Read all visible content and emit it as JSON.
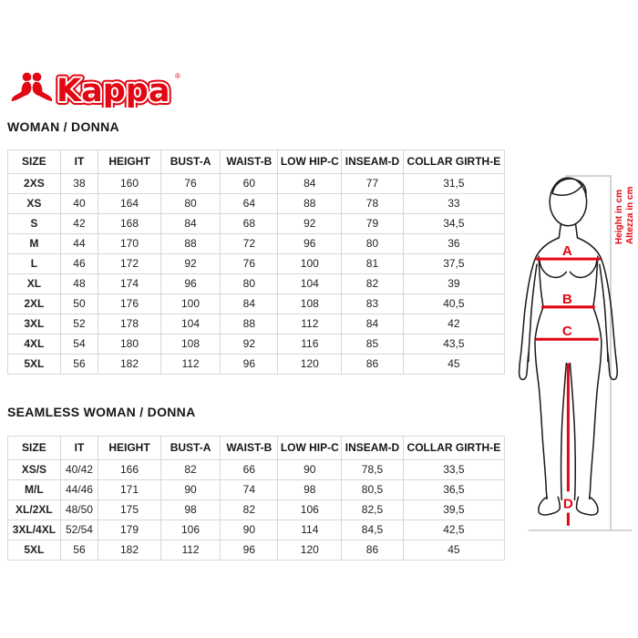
{
  "brand": {
    "logo_text": "Kappa",
    "registered_mark": "®"
  },
  "colors": {
    "accent_red": "#e30613",
    "figure_outline": "#1a1a1a",
    "measure_gray": "#c9c9c9",
    "table_border": "#d8d8d8"
  },
  "sections": [
    {
      "heading": "WOMAN / DONNA",
      "table": {
        "columns": [
          "SIZE",
          "IT",
          "HEIGHT",
          "BUST-A",
          "WAIST-B",
          "LOW HIP-C",
          "INSEAM-D",
          "COLLAR GIRTH-E"
        ],
        "rows": [
          [
            "2XS",
            "38",
            "160",
            "76",
            "60",
            "84",
            "77",
            "31,5"
          ],
          [
            "XS",
            "40",
            "164",
            "80",
            "64",
            "88",
            "78",
            "33"
          ],
          [
            "S",
            "42",
            "168",
            "84",
            "68",
            "92",
            "79",
            "34,5"
          ],
          [
            "M",
            "44",
            "170",
            "88",
            "72",
            "96",
            "80",
            "36"
          ],
          [
            "L",
            "46",
            "172",
            "92",
            "76",
            "100",
            "81",
            "37,5"
          ],
          [
            "XL",
            "48",
            "174",
            "96",
            "80",
            "104",
            "82",
            "39"
          ],
          [
            "2XL",
            "50",
            "176",
            "100",
            "84",
            "108",
            "83",
            "40,5"
          ],
          [
            "3XL",
            "52",
            "178",
            "104",
            "88",
            "112",
            "84",
            "42"
          ],
          [
            "4XL",
            "54",
            "180",
            "108",
            "92",
            "116",
            "85",
            "43,5"
          ],
          [
            "5XL",
            "56",
            "182",
            "112",
            "96",
            "120",
            "86",
            "45"
          ]
        ]
      }
    },
    {
      "heading": "SEAMLESS WOMAN / DONNA",
      "table": {
        "columns": [
          "SIZE",
          "IT",
          "HEIGHT",
          "BUST-A",
          "WAIST-B",
          "LOW HIP-C",
          "INSEAM-D",
          "COLLAR GIRTH-E"
        ],
        "rows": [
          [
            "XS/S",
            "40/42",
            "166",
            "82",
            "66",
            "90",
            "78,5",
            "33,5"
          ],
          [
            "M/L",
            "44/46",
            "171",
            "90",
            "74",
            "98",
            "80,5",
            "36,5"
          ],
          [
            "XL/2XL",
            "48/50",
            "175",
            "98",
            "82",
            "106",
            "82,5",
            "39,5"
          ],
          [
            "3XL/4XL",
            "52/54",
            "179",
            "106",
            "90",
            "114",
            "84,5",
            "42,5"
          ],
          [
            "5XL",
            "56",
            "182",
            "112",
            "96",
            "120",
            "86",
            "45"
          ]
        ]
      }
    }
  ],
  "diagram": {
    "labels": {
      "bust": "A",
      "waist": "B",
      "hip": "C",
      "inseam": "D"
    },
    "height_caption_en": "Height in cm",
    "height_caption_it": "Altezza in cm"
  }
}
